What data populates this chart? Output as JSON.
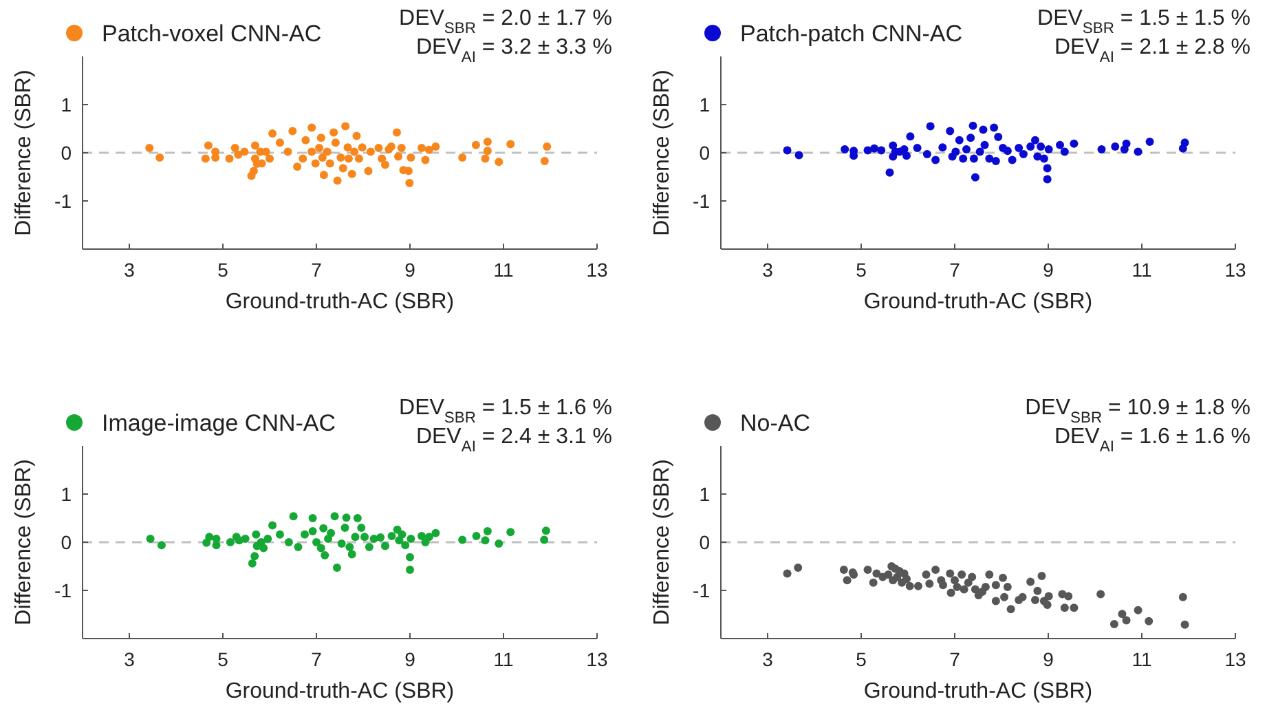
{
  "chart_data": [
    {
      "type": "scatter",
      "xlabel": "Ground-truth-AC (SBR)",
      "ylabel": "Difference (SBR)",
      "xlim": [
        2,
        13
      ],
      "ylim": [
        -2,
        2
      ],
      "xticks": [
        3,
        5,
        7,
        9,
        11,
        13
      ],
      "yticks": [
        -1,
        0,
        1
      ],
      "legend": "top left",
      "marker": "circle",
      "annotations": [
        "DEV$_{SBR}$ = 2.0 ± 1.7 %",
        "DEV$_{AI}$ = 3.2 ± 3.3 %"
      ],
      "ref_lines": [
        {
          "axis": "y",
          "value": 0,
          "color": "#c0c0c0",
          "line_style": "dashed"
        }
      ],
      "series": [
        {
          "name": "Patch-voxel CNN-AC",
          "color": "#f7861c",
          "x": [
            3.43,
            3.65,
            4.69,
            4.63,
            4.84,
            4.84,
            5.14,
            5.26,
            5.33,
            5.46,
            5.61,
            5.66,
            5.69,
            5.69,
            5.73,
            5.8,
            5.83,
            5.92,
            6.0,
            6.06,
            6.22,
            6.39,
            6.49,
            6.59,
            6.71,
            6.77,
            6.9,
            6.9,
            6.98,
            7.06,
            7.1,
            7.13,
            7.16,
            7.23,
            7.29,
            7.37,
            7.41,
            7.45,
            7.52,
            7.57,
            7.62,
            7.67,
            7.69,
            7.76,
            7.81,
            7.86,
            7.91,
            7.98,
            8.11,
            8.16,
            8.33,
            8.4,
            8.47,
            8.55,
            8.6,
            8.72,
            8.75,
            8.82,
            8.86,
            8.97,
            8.99,
            9.02,
            9.25,
            9.33,
            9.41,
            9.55,
            10.12,
            10.41,
            10.66,
            10.66,
            10.61,
            10.9,
            11.15,
            11.88,
            11.93
          ],
          "values": [
            0.1,
            -0.1,
            0.15,
            -0.12,
            0.02,
            -0.1,
            -0.12,
            0.1,
            -0.04,
            0.02,
            -0.48,
            -0.38,
            0.15,
            -0.12,
            -0.23,
            0.02,
            -0.22,
            0.02,
            -0.12,
            0.4,
            0.21,
            0.02,
            0.45,
            -0.29,
            -0.12,
            0.26,
            0.52,
            0.02,
            -0.22,
            0.1,
            0.31,
            -0.1,
            -0.46,
            0.02,
            -0.22,
            0.42,
            0.21,
            -0.58,
            -0.1,
            -0.32,
            0.55,
            0.11,
            -0.12,
            -0.44,
            0.02,
            0.35,
            -0.12,
            0.11,
            -0.38,
            0.02,
            0.1,
            -0.12,
            -0.25,
            0.07,
            0.13,
            0.42,
            -0.08,
            0.1,
            -0.36,
            -0.38,
            -0.63,
            -0.1,
            0.1,
            -0.15,
            0.06,
            0.13,
            -0.1,
            0.16,
            0.23,
            0.04,
            -0.12,
            -0.19,
            0.18,
            -0.17,
            0.13
          ]
        }
      ]
    },
    {
      "type": "scatter",
      "xlabel": "Ground-truth-AC (SBR)",
      "ylabel": "Difference (SBR)",
      "xlim": [
        2,
        13
      ],
      "ylim": [
        -2,
        2
      ],
      "xticks": [
        3,
        5,
        7,
        9,
        11,
        13
      ],
      "yticks": [
        -1,
        0,
        1
      ],
      "legend": "top left",
      "marker": "circle",
      "annotations": [
        "DEV$_{SBR}$ = 1.5 ± 1.5 %",
        "DEV$_{AI}$ = 2.1 ± 2.8 %"
      ],
      "ref_lines": [
        {
          "axis": "y",
          "value": 0,
          "color": "#c0c0c0",
          "line_style": "dashed"
        }
      ],
      "series": [
        {
          "name": "Patch-patch CNN-AC",
          "color": "#0a0ad2",
          "x": [
            3.42,
            3.67,
            4.65,
            4.84,
            4.84,
            5.14,
            5.28,
            5.43,
            5.61,
            5.68,
            5.68,
            5.73,
            5.82,
            5.92,
            5.97,
            6.05,
            6.2,
            6.41,
            6.48,
            6.59,
            6.74,
            6.9,
            6.95,
            7.02,
            7.1,
            7.18,
            7.25,
            7.34,
            7.39,
            7.41,
            7.44,
            7.54,
            7.61,
            7.64,
            7.74,
            7.84,
            7.88,
            7.93,
            8.03,
            8.13,
            8.23,
            8.37,
            8.47,
            8.62,
            8.72,
            8.77,
            8.84,
            8.91,
            8.98,
            8.98,
            9.01,
            9.25,
            9.35,
            9.55,
            10.14,
            10.43,
            10.63,
            10.67,
            10.92,
            11.17,
            11.88,
            11.92
          ],
          "values": [
            0.05,
            -0.05,
            0.07,
            0.04,
            -0.06,
            0.05,
            0.09,
            0.05,
            -0.41,
            0.15,
            -0.08,
            0.02,
            0.02,
            0.07,
            -0.06,
            0.34,
            0.1,
            -0.03,
            0.55,
            -0.15,
            0.11,
            0.45,
            -0.08,
            0.02,
            0.26,
            -0.12,
            0.07,
            0.31,
            0.56,
            -0.12,
            -0.51,
            0.02,
            0.48,
            0.16,
            -0.12,
            0.52,
            -0.17,
            0.33,
            0.1,
            0.04,
            -0.15,
            0.1,
            -0.03,
            0.13,
            0.26,
            -0.08,
            0.13,
            -0.12,
            -0.32,
            -0.55,
            0.07,
            0.16,
            0.02,
            0.19,
            0.07,
            0.13,
            0.07,
            0.19,
            0.02,
            0.23,
            0.09,
            0.21
          ]
        }
      ]
    },
    {
      "type": "scatter",
      "xlabel": "Ground-truth-AC (SBR)",
      "ylabel": "Difference (SBR)",
      "xlim": [
        2,
        13
      ],
      "ylim": [
        -2,
        2
      ],
      "xticks": [
        3,
        5,
        7,
        9,
        11,
        13
      ],
      "yticks": [
        -1,
        0,
        1
      ],
      "legend": "top left",
      "marker": "circle",
      "annotations": [
        "DEV$_{SBR}$ = 1.5 ± 1.6 %",
        "DEV$_{AI}$ = 2.4 ± 3.1 %"
      ],
      "ref_lines": [
        {
          "axis": "y",
          "value": 0,
          "color": "#c0c0c0",
          "line_style": "dashed"
        }
      ],
      "series": [
        {
          "name": "Image-image CNN-AC",
          "color": "#16a835",
          "x": [
            3.45,
            3.69,
            4.65,
            4.71,
            4.86,
            4.86,
            5.16,
            5.29,
            5.35,
            5.48,
            5.63,
            5.68,
            5.71,
            5.73,
            5.82,
            5.87,
            5.96,
            6.06,
            6.22,
            6.41,
            6.51,
            6.61,
            6.75,
            6.92,
            6.92,
            7.0,
            7.1,
            7.15,
            7.18,
            7.25,
            7.31,
            7.39,
            7.44,
            7.54,
            7.61,
            7.64,
            7.71,
            7.76,
            7.83,
            7.88,
            7.96,
            8.03,
            8.13,
            8.23,
            8.37,
            8.47,
            8.61,
            8.73,
            8.77,
            8.83,
            8.9,
            9.0,
            9.0,
            9.02,
            9.25,
            9.33,
            9.41,
            9.55,
            10.12,
            10.42,
            10.66,
            10.61,
            10.9,
            11.15,
            11.87,
            11.91
          ],
          "values": [
            0.07,
            -0.06,
            -0.01,
            0.11,
            0.07,
            -0.06,
            0,
            0.11,
            0.04,
            0.07,
            -0.44,
            -0.29,
            0.16,
            -0.08,
            0,
            -0.12,
            0.07,
            0.35,
            0.16,
            0,
            0.54,
            -0.1,
            0.16,
            0.5,
            0.23,
            0,
            -0.12,
            0.29,
            -0.27,
            0.07,
            0.19,
            0.54,
            -0.53,
            -0.03,
            0.3,
            0.51,
            -0.1,
            -0.25,
            0.11,
            0.5,
            0.3,
            0.11,
            -0.1,
            0.07,
            0.1,
            -0.08,
            0.13,
            0.26,
            0.04,
            0.16,
            -0.06,
            -0.31,
            -0.57,
            0.07,
            0.13,
            0,
            0.11,
            0.19,
            0.05,
            0.13,
            0.23,
            0.04,
            -0.03,
            0.21,
            0.05,
            0.24
          ]
        }
      ]
    },
    {
      "type": "scatter",
      "xlabel": "Ground-truth-AC (SBR)",
      "ylabel": "Difference (SBR)",
      "xlim": [
        2,
        13
      ],
      "ylim": [
        -2,
        2
      ],
      "xticks": [
        3,
        5,
        7,
        9,
        11,
        13
      ],
      "yticks": [
        -1,
        0,
        1
      ],
      "legend": "top left",
      "marker": "circle",
      "annotations": [
        "DEV$_{SBR}$ = 10.9 ± 1.8 %",
        "DEV$_{AI}$ = 1.6 ± 1.6 %"
      ],
      "ref_lines": [
        {
          "axis": "y",
          "value": 0,
          "color": "#c0c0c0",
          "line_style": "dashed"
        }
      ],
      "series": [
        {
          "name": "No-AC",
          "color": "#575757",
          "x": [
            3.42,
            3.65,
            4.63,
            4.7,
            4.82,
            4.84,
            5.14,
            5.26,
            5.33,
            5.46,
            5.58,
            5.65,
            5.68,
            5.73,
            5.77,
            5.82,
            5.87,
            5.92,
            5.97,
            6.04,
            6.22,
            6.39,
            6.46,
            6.59,
            6.71,
            6.75,
            6.9,
            6.92,
            7.0,
            7.05,
            7.15,
            7.2,
            7.29,
            7.37,
            7.44,
            7.51,
            7.59,
            7.66,
            7.74,
            7.88,
            7.88,
            8.03,
            8.06,
            8.13,
            8.2,
            8.37,
            8.45,
            8.62,
            8.72,
            8.77,
            8.86,
            8.91,
            8.98,
            9.01,
            9.3,
            9.35,
            9.43,
            9.55,
            10.12,
            10.41,
            10.58,
            10.67,
            10.92,
            11.15,
            11.88,
            11.92
          ],
          "values": [
            -0.65,
            -0.53,
            -0.57,
            -0.79,
            -0.63,
            -0.67,
            -0.57,
            -0.84,
            -0.65,
            -0.72,
            -0.67,
            -0.5,
            -0.79,
            -0.55,
            -0.72,
            -0.6,
            -0.84,
            -0.65,
            -0.76,
            -0.91,
            -0.91,
            -0.67,
            -0.86,
            -0.57,
            -0.79,
            -0.89,
            -0.65,
            -1.05,
            -0.79,
            -0.93,
            -0.67,
            -0.98,
            -0.84,
            -0.72,
            -0.98,
            -1.1,
            -1.03,
            -0.93,
            -0.67,
            -0.89,
            -1.22,
            -0.74,
            -1.14,
            -0.93,
            -1.39,
            -1.2,
            -1.14,
            -0.82,
            -1.2,
            -1.01,
            -0.7,
            -1.22,
            -1.3,
            -1.12,
            -1.08,
            -1.36,
            -1.12,
            -1.36,
            -1.08,
            -1.7,
            -1.49,
            -1.62,
            -1.41,
            -1.64,
            -1.14,
            -1.71
          ]
        }
      ]
    }
  ]
}
